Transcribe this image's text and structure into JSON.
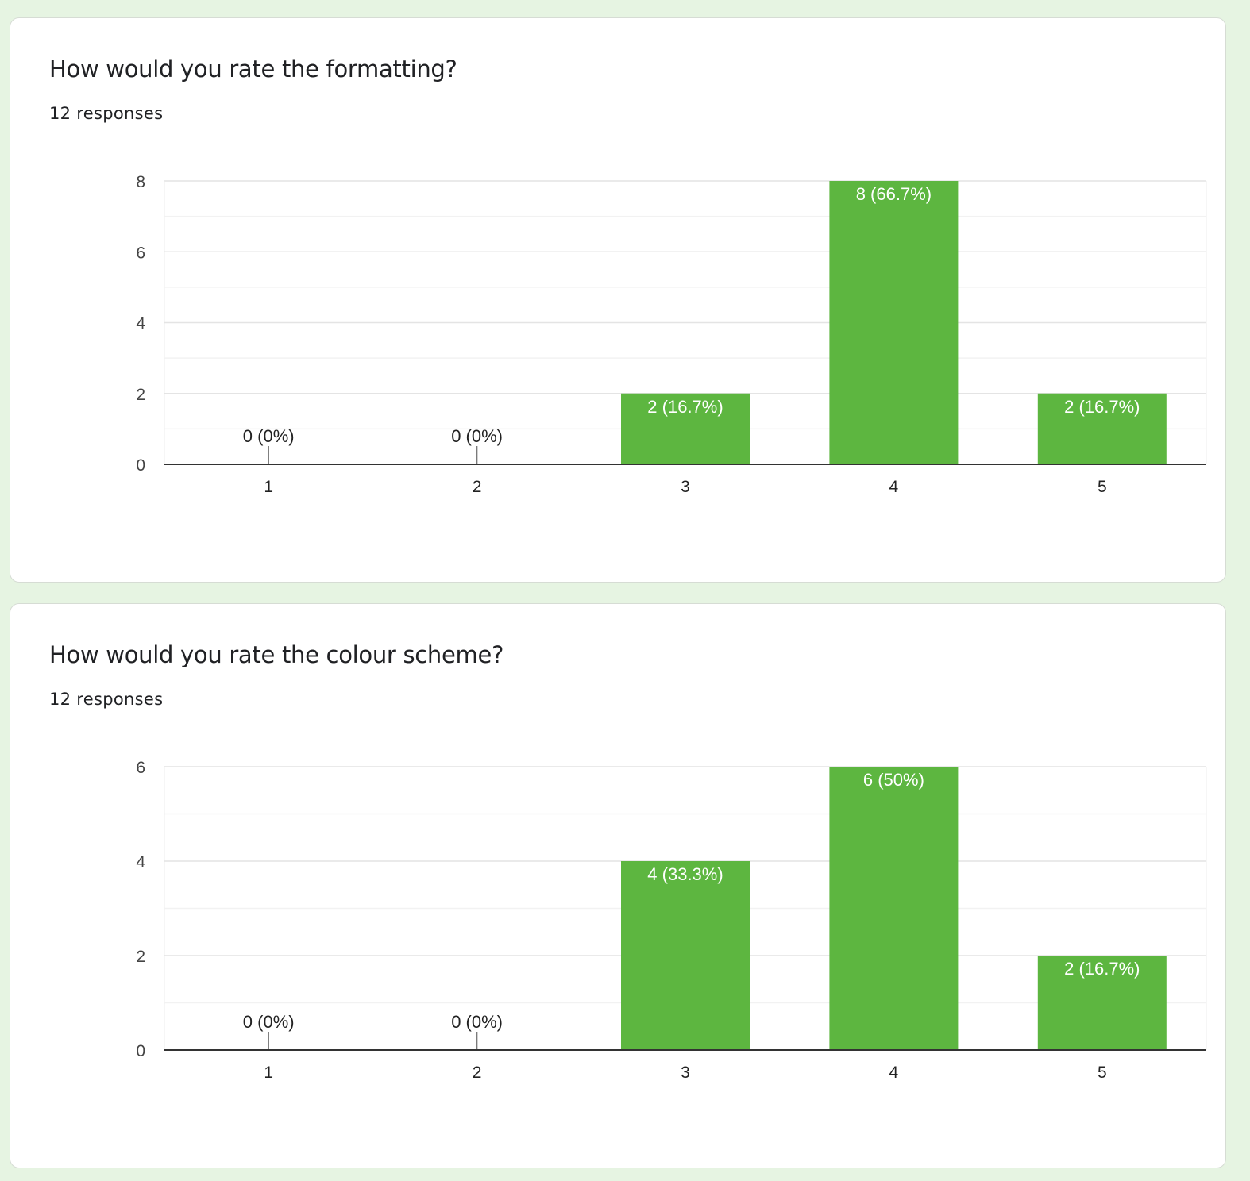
{
  "accent_color": "#5db640",
  "page_background": "#e6f4e2",
  "questions": [
    {
      "title": "How would you rate the formatting?",
      "responses": "12 responses",
      "chart_data": {
        "type": "bar",
        "categories": [
          "1",
          "2",
          "3",
          "4",
          "5"
        ],
        "values": [
          0,
          0,
          2,
          8,
          2
        ],
        "data_labels": [
          "0 (0%)",
          "0 (0%)",
          "2 (16.7%)",
          "8 (66.7%)",
          "2 (16.7%)"
        ],
        "ylim": [
          0,
          8
        ],
        "yticks": [
          0,
          2,
          4,
          6,
          8
        ],
        "grid": true,
        "legend": "none"
      }
    },
    {
      "title": "How would you rate the colour scheme?",
      "responses": "12 responses",
      "chart_data": {
        "type": "bar",
        "categories": [
          "1",
          "2",
          "3",
          "4",
          "5"
        ],
        "values": [
          0,
          0,
          4,
          6,
          2
        ],
        "data_labels": [
          "0 (0%)",
          "0 (0%)",
          "4 (33.3%)",
          "6 (50%)",
          "2 (16.7%)"
        ],
        "ylim": [
          0,
          6
        ],
        "yticks": [
          0,
          2,
          4,
          6
        ],
        "grid": true,
        "legend": "none"
      }
    }
  ]
}
